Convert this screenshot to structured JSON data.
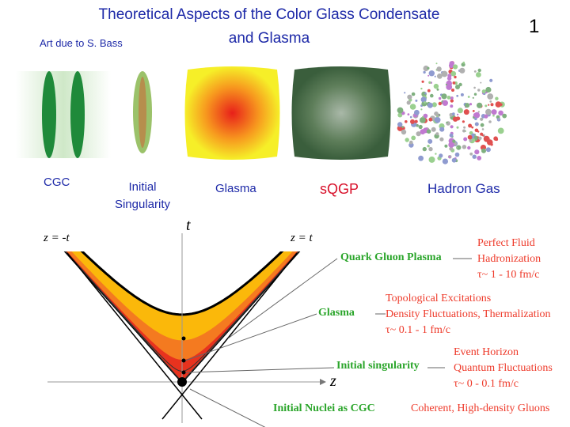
{
  "slide": {
    "title_line1": "Theoretical Aspects of the Color Glass Condensate",
    "title_line2": "and Glasma",
    "page_number": "1",
    "credit": "Art due to S. Bass"
  },
  "stages": [
    {
      "label": "CGC"
    },
    {
      "label": "Initial"
    },
    {
      "label": "Singularity"
    },
    {
      "label": "Glasma"
    },
    {
      "label": "sQGP"
    },
    {
      "label": "Hadron Gas"
    }
  ],
  "axes": {
    "t": "t",
    "z": "z",
    "left_cone": "z = -t",
    "right_cone": "z = t"
  },
  "phases": [
    {
      "name": "Quark Gluon Plasma",
      "props": [
        "Perfect Fluid",
        "Hadronization",
        "τ~ 1 - 10 fm/c"
      ]
    },
    {
      "name": "Glasma",
      "props": [
        "Topological Excitations",
        "Density Fluctuations, Thermalization",
        "τ~ 0.1 - 1 fm/c"
      ]
    },
    {
      "name": "Initial singularity",
      "props": [
        "Event Horizon",
        "Quantum Fluctuations",
        "τ~ 0 - 0.1 fm/c"
      ]
    },
    {
      "name": "Initial Nuclei as CGC",
      "props": [
        "Coherent, High-density Gluons"
      ]
    }
  ],
  "colors": {
    "title": "#1e2aa8",
    "phase_name": "#2aa52a",
    "phase_props": "#ee3a2a",
    "sqgp_label": "#d8102a",
    "yellow": "#fbb80a",
    "orange": "#f47a20",
    "red": "#e8321e"
  }
}
